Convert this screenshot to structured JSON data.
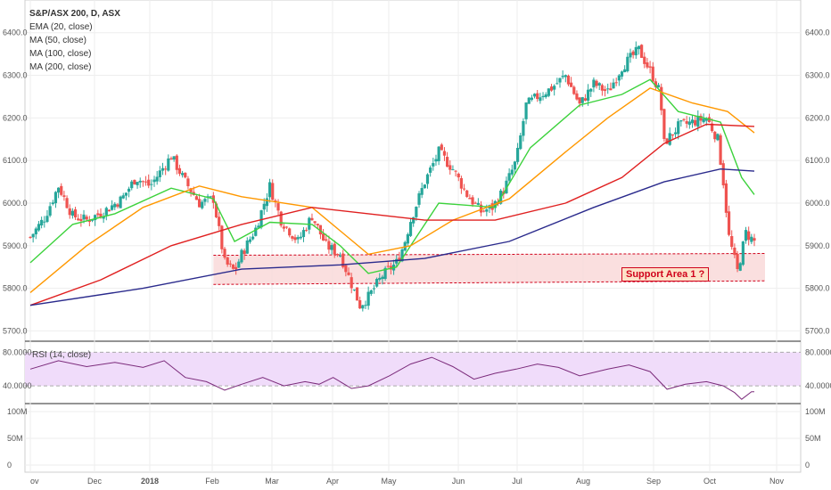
{
  "legend": {
    "title": "S&P/ASX 200, D, ASX",
    "ema20": "EMA (20, close)",
    "ma50": "MA (50, close)",
    "ma100": "MA (100, close)",
    "ma200": "MA (200, close)"
  },
  "rsi_label": "RSI (14, close)",
  "support_label": "Support Area 1 ?",
  "colors": {
    "up": "#26a69a",
    "down": "#ef5350",
    "ema20": "#3cd23c",
    "ma50": "#ff9800",
    "ma100": "#e02020",
    "ma200": "#2a2a8c",
    "rsi": "#7b2b7b",
    "rsi_band": "#f0dcfa",
    "support_fill": "#f9d7d7"
  },
  "chart_data": [
    {
      "type": "candlestick",
      "title": "S&P/ASX 200, D, ASX",
      "ylim": [
        5680,
        6460
      ],
      "y_ticks": [
        "6400.0",
        "6300.0",
        "6200.0",
        "6100.0",
        "6000.0",
        "5900.0",
        "5800.0",
        "5700.0"
      ],
      "y_tick_values": [
        6400,
        6300,
        6200,
        6100,
        6000,
        5900,
        5800,
        5700
      ],
      "x_ticks": [
        "ov",
        "Dec",
        "2018",
        "Feb",
        "Mar",
        "Apr",
        "May",
        "Jun",
        "Jul",
        "Aug",
        "Sep",
        "Oct",
        "Nov"
      ],
      "close_path": [
        [
          0,
          5920
        ],
        [
          10,
          5965
        ],
        [
          20,
          6040
        ],
        [
          30,
          5970
        ],
        [
          40,
          5960
        ],
        [
          52,
          5980
        ],
        [
          65,
          6010
        ],
        [
          75,
          6060
        ],
        [
          85,
          6040
        ],
        [
          100,
          6110
        ],
        [
          110,
          6050
        ],
        [
          120,
          6000
        ],
        [
          130,
          6010
        ],
        [
          138,
          5860
        ],
        [
          145,
          5840
        ],
        [
          150,
          5880
        ],
        [
          160,
          5940
        ],
        [
          170,
          6040
        ],
        [
          178,
          5960
        ],
        [
          190,
          5910
        ],
        [
          200,
          5970
        ],
        [
          210,
          5900
        ],
        [
          220,
          5880
        ],
        [
          228,
          5810
        ],
        [
          234,
          5760
        ],
        [
          240,
          5780
        ],
        [
          250,
          5830
        ],
        [
          260,
          5860
        ],
        [
          265,
          5900
        ],
        [
          270,
          5960
        ],
        [
          280,
          6050
        ],
        [
          290,
          6120
        ],
        [
          300,
          6080
        ],
        [
          310,
          6020
        ],
        [
          320,
          5980
        ],
        [
          328,
          5990
        ],
        [
          336,
          6030
        ],
        [
          345,
          6100
        ],
        [
          352,
          6230
        ],
        [
          360,
          6250
        ],
        [
          370,
          6270
        ],
        [
          380,
          6300
        ],
        [
          390,
          6230
        ],
        [
          400,
          6280
        ],
        [
          410,
          6260
        ],
        [
          420,
          6320
        ],
        [
          432,
          6360
        ],
        [
          440,
          6310
        ],
        [
          447,
          6260
        ],
        [
          450,
          6140
        ],
        [
          460,
          6180
        ],
        [
          470,
          6190
        ],
        [
          480,
          6200
        ],
        [
          488,
          6150
        ],
        [
          492,
          6050
        ],
        [
          496,
          5920
        ],
        [
          502,
          5840
        ],
        [
          508,
          5930
        ],
        [
          514,
          5910
        ]
      ],
      "support_zone": {
        "from_day": 130,
        "to_day": 514,
        "low": 5830,
        "high": 5865
      },
      "series": [
        {
          "name": "EMA (20, close)",
          "points": [
            [
              0,
              5860
            ],
            [
              30,
              5950
            ],
            [
              60,
              5975
            ],
            [
              100,
              6035
            ],
            [
              130,
              6010
            ],
            [
              145,
              5910
            ],
            [
              170,
              5955
            ],
            [
              200,
              5950
            ],
            [
              220,
              5900
            ],
            [
              240,
              5835
            ],
            [
              260,
              5850
            ],
            [
              290,
              6000
            ],
            [
              330,
              5990
            ],
            [
              355,
              6130
            ],
            [
              390,
              6230
            ],
            [
              420,
              6255
            ],
            [
              440,
              6290
            ],
            [
              460,
              6215
            ],
            [
              490,
              6190
            ],
            [
              505,
              6060
            ],
            [
              514,
              6020
            ]
          ]
        },
        {
          "name": "MA (50, close)",
          "points": [
            [
              0,
              5790
            ],
            [
              40,
              5900
            ],
            [
              80,
              5990
            ],
            [
              120,
              6040
            ],
            [
              150,
              6015
            ],
            [
              200,
              5990
            ],
            [
              240,
              5880
            ],
            [
              270,
              5900
            ],
            [
              300,
              5960
            ],
            [
              340,
              6010
            ],
            [
              380,
              6120
            ],
            [
              410,
              6200
            ],
            [
              440,
              6270
            ],
            [
              470,
              6235
            ],
            [
              495,
              6215
            ],
            [
              514,
              6165
            ]
          ]
        },
        {
          "name": "MA (100, close)",
          "points": [
            [
              0,
              5760
            ],
            [
              50,
              5820
            ],
            [
              100,
              5900
            ],
            [
              150,
              5950
            ],
            [
              200,
              5990
            ],
            [
              240,
              5975
            ],
            [
              280,
              5960
            ],
            [
              330,
              5960
            ],
            [
              380,
              6000
            ],
            [
              420,
              6060
            ],
            [
              450,
              6140
            ],
            [
              480,
              6185
            ],
            [
              514,
              6180
            ]
          ]
        },
        {
          "name": "MA (200, close)",
          "points": [
            [
              0,
              5760
            ],
            [
              80,
              5800
            ],
            [
              150,
              5845
            ],
            [
              220,
              5855
            ],
            [
              280,
              5870
            ],
            [
              340,
              5910
            ],
            [
              400,
              5990
            ],
            [
              450,
              6050
            ],
            [
              490,
              6080
            ],
            [
              514,
              6075
            ]
          ]
        }
      ]
    },
    {
      "type": "line",
      "title": "RSI (14, close)",
      "ylim": [
        20,
        90
      ],
      "y_ticks": [
        "80.0000",
        "40.0000"
      ],
      "y_tick_values": [
        80,
        40
      ],
      "band": [
        40,
        80
      ],
      "series": [
        {
          "name": "RSI (14, close)",
          "points": [
            [
              0,
              60
            ],
            [
              20,
              70
            ],
            [
              40,
              63
            ],
            [
              60,
              68
            ],
            [
              80,
              62
            ],
            [
              95,
              70
            ],
            [
              110,
              50
            ],
            [
              125,
              45
            ],
            [
              138,
              35
            ],
            [
              150,
              42
            ],
            [
              165,
              50
            ],
            [
              180,
              40
            ],
            [
              195,
              45
            ],
            [
              205,
              42
            ],
            [
              215,
              50
            ],
            [
              228,
              37
            ],
            [
              240,
              40
            ],
            [
              255,
              52
            ],
            [
              270,
              66
            ],
            [
              285,
              74
            ],
            [
              300,
              63
            ],
            [
              315,
              48
            ],
            [
              330,
              55
            ],
            [
              345,
              60
            ],
            [
              360,
              66
            ],
            [
              375,
              62
            ],
            [
              390,
              52
            ],
            [
              410,
              60
            ],
            [
              425,
              65
            ],
            [
              440,
              57
            ],
            [
              452,
              36
            ],
            [
              465,
              42
            ],
            [
              480,
              45
            ],
            [
              492,
              40
            ],
            [
              500,
              32
            ],
            [
              505,
              24
            ],
            [
              512,
              33
            ],
            [
              514,
              33
            ]
          ]
        }
      ]
    },
    {
      "type": "bar",
      "title": "",
      "y_ticks": [
        "100M",
        "50M",
        "0"
      ],
      "y_tick_values": [
        100,
        50,
        0
      ],
      "ylabel": "",
      "values": []
    }
  ]
}
